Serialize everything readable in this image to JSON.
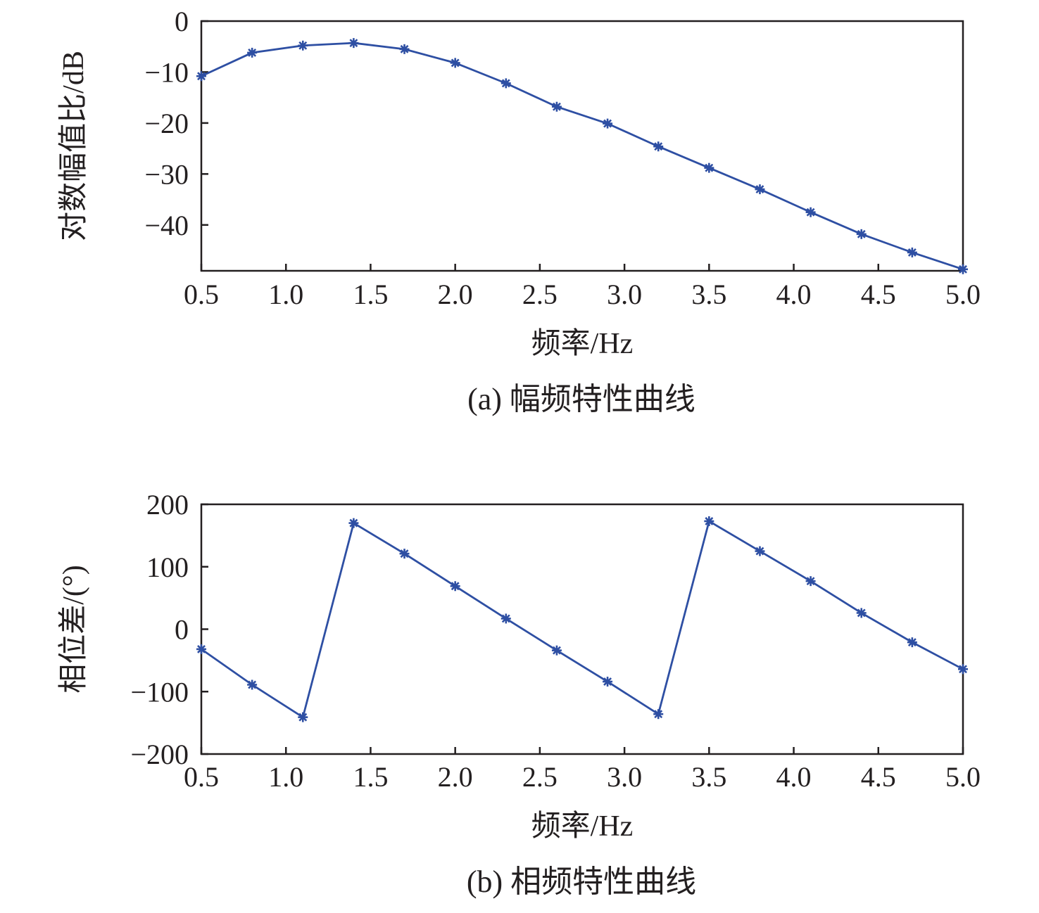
{
  "chart_data": [
    {
      "type": "line",
      "caption": "(a) 幅频特性曲线",
      "xlabel": "频率/Hz",
      "ylabel": "对数幅值比/dB",
      "xlim": [
        0.5,
        5.0
      ],
      "ylim": [
        -49,
        0
      ],
      "xticks": [
        "0.5",
        "1.0",
        "1.5",
        "2.0",
        "2.5",
        "3.0",
        "3.5",
        "4.0",
        "4.5",
        "5.0"
      ],
      "xtick_values": [
        0.5,
        1.0,
        1.5,
        2.0,
        2.5,
        3.0,
        3.5,
        4.0,
        4.5,
        5.0
      ],
      "yticks": [
        "0",
        "−10",
        "−20",
        "−30",
        "−40"
      ],
      "ytick_values": [
        0,
        -10,
        -20,
        -30,
        -40
      ],
      "marker": "asterisk",
      "color": "#2e4fa3",
      "grid": false,
      "series": [
        {
          "x": [
            0.5,
            0.8,
            1.1,
            1.4,
            1.7,
            2.0,
            2.3,
            2.6,
            2.9,
            3.2,
            3.5,
            3.8,
            4.1,
            4.4,
            4.7,
            5.0
          ],
          "values": [
            -10.8,
            -6.2,
            -4.8,
            -4.3,
            -5.5,
            -8.2,
            -12.2,
            -16.8,
            -20.1,
            -24.6,
            -28.8,
            -33.0,
            -37.5,
            -41.8,
            -45.4,
            -48.7
          ]
        }
      ]
    },
    {
      "type": "line",
      "caption": "(b) 相频特性曲线",
      "xlabel": "频率/Hz",
      "ylabel": "相位差/(°)",
      "xlim": [
        0.5,
        5.0
      ],
      "ylim": [
        -200,
        200
      ],
      "xticks": [
        "0.5",
        "1.0",
        "1.5",
        "2.0",
        "2.5",
        "3.0",
        "3.5",
        "4.0",
        "4.5",
        "5.0"
      ],
      "xtick_values": [
        0.5,
        1.0,
        1.5,
        2.0,
        2.5,
        3.0,
        3.5,
        4.0,
        4.5,
        5.0
      ],
      "yticks": [
        "200",
        "100",
        "0",
        "−100",
        "−200"
      ],
      "ytick_values": [
        200,
        100,
        0,
        -100,
        -200
      ],
      "marker": "asterisk",
      "color": "#2e4fa3",
      "grid": false,
      "series": [
        {
          "x": [
            0.5,
            0.8,
            1.1,
            1.4,
            1.7,
            2.0,
            2.3,
            2.6,
            2.9,
            3.2,
            3.5,
            3.8,
            4.1,
            4.4,
            4.7,
            5.0
          ],
          "values": [
            -32,
            -89,
            -141,
            170,
            121,
            69,
            17,
            -34,
            -84,
            -136,
            173,
            125,
            77,
            26,
            -21,
            -64
          ]
        }
      ]
    }
  ]
}
